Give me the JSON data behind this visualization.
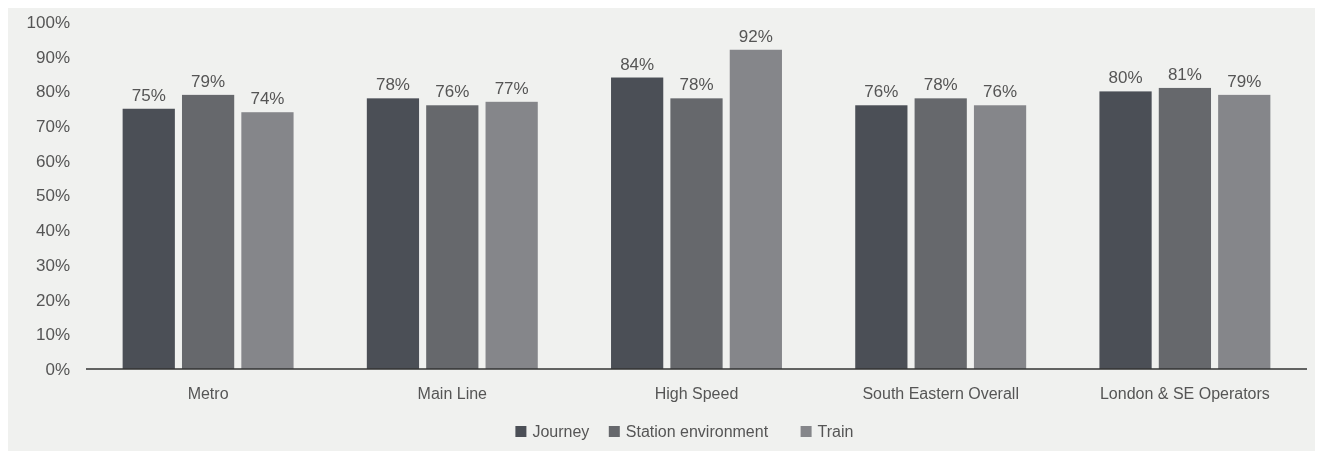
{
  "chart_data": {
    "type": "bar",
    "categories": [
      "Metro",
      "Main Line",
      "High Speed",
      "South Eastern Overall",
      "London & SE Operators"
    ],
    "series": [
      {
        "name": "Journey",
        "color": "#4b4f56",
        "values": [
          75,
          78,
          84,
          76,
          80
        ],
        "value_labels": [
          "75%",
          "78%",
          "84%",
          "76%",
          "80%"
        ]
      },
      {
        "name": "Station environment",
        "color": "#66686c",
        "values": [
          79,
          76,
          78,
          78,
          81
        ],
        "value_labels": [
          "79%",
          "76%",
          "78%",
          "78%",
          "81%"
        ]
      },
      {
        "name": "Train",
        "color": "#85868a",
        "values": [
          74,
          77,
          92,
          76,
          79
        ],
        "value_labels": [
          "74%",
          "77%",
          "92%",
          "76%",
          "79%"
        ]
      }
    ],
    "ylim": [
      0,
      100
    ],
    "yticks": [
      {
        "value": 0,
        "label": "0%"
      },
      {
        "value": 10,
        "label": "10%"
      },
      {
        "value": 20,
        "label": "20%"
      },
      {
        "value": 30,
        "label": "30%"
      },
      {
        "value": 40,
        "label": "40%"
      },
      {
        "value": 50,
        "label": "50%"
      },
      {
        "value": 60,
        "label": "60%"
      },
      {
        "value": 70,
        "label": "70%"
      },
      {
        "value": 80,
        "label": "80%"
      },
      {
        "value": 90,
        "label": "90%"
      },
      {
        "value": 100,
        "label": "100%"
      }
    ],
    "grid": false,
    "legend": "bottom",
    "marker": "square"
  }
}
